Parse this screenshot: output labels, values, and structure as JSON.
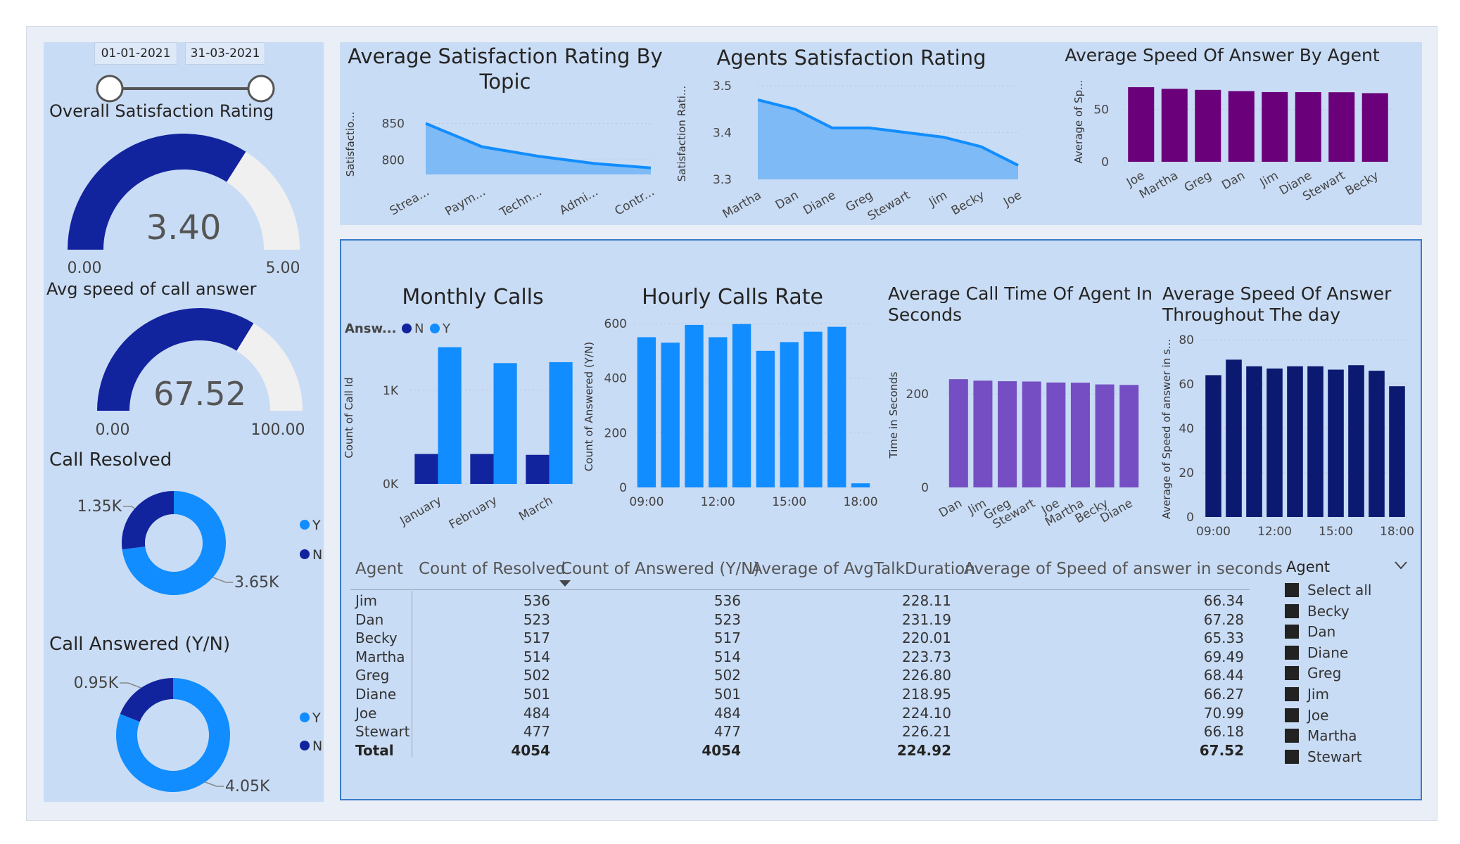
{
  "slicer": {
    "start_date": "01-01-2021",
    "end_date": "31-03-2021"
  },
  "gauges": [
    {
      "title": "Overall Satisfaction Rating",
      "value": 3.4,
      "value_label": "3.40",
      "min_label": "0.00",
      "max_label": "5.00",
      "min": 0,
      "max": 5,
      "fill_color": "#12239e",
      "track_color": "#f0f0f0"
    },
    {
      "title": "Avg speed of call answer",
      "value": 67.52,
      "value_label": "67.52",
      "min_label": "0.00",
      "max_label": "100.00",
      "min": 0,
      "max": 100,
      "fill_color": "#12239e",
      "track_color": "#f0f0f0"
    }
  ],
  "donuts": [
    {
      "title": "Call Resolved",
      "label_n": "1.35K",
      "label_y": "3.65K",
      "value_n": 1350,
      "value_y": 3650,
      "legend": [
        "Y",
        "N"
      ]
    },
    {
      "title": "Call Answered (Y/N)",
      "label_n": "0.95K",
      "label_y": "4.05K",
      "value_n": 950,
      "value_y": 4050,
      "legend": [
        "Y",
        "N"
      ]
    }
  ],
  "colors": {
    "dark_blue": "#12239e",
    "light_blue": "#118dff",
    "area_fill": "#7ebaf5",
    "area_line": "#118dff",
    "purple_dark": "#6b007b",
    "purple": "#744ec2",
    "navy": "#0b1a70"
  },
  "chart_data": [
    {
      "id": "sat_topic",
      "type": "area",
      "title_lines": [
        "Average Satisfaction Rating By",
        "Topic"
      ],
      "ylabel": "Satisfactio...",
      "categories": [
        "Strea...",
        "Paym...",
        "Techn...",
        "Admi...",
        "Contr..."
      ],
      "values": [
        850,
        818,
        805,
        795,
        789
      ],
      "ylim": [
        780,
        865
      ],
      "yticks": [
        800,
        850
      ]
    },
    {
      "id": "agent_sat",
      "type": "area",
      "title_lines": [
        "Agents Satisfaction Rating"
      ],
      "ylabel": "Satisfaction Rati...",
      "categories": [
        "Martha",
        "Dan",
        "Diane",
        "Greg",
        "Stewart",
        "Jim",
        "Becky",
        "Joe"
      ],
      "values": [
        3.47,
        3.45,
        3.41,
        3.41,
        3.4,
        3.39,
        3.37,
        3.33
      ],
      "ylim": [
        3.3,
        3.5
      ],
      "yticks": [
        3.3,
        3.4,
        3.5
      ]
    },
    {
      "id": "speed_agent",
      "type": "bar",
      "title_lines": [
        "Average Speed Of Answer By Agent"
      ],
      "ylabel": "Average of Sp...",
      "categories": [
        "Joe",
        "Martha",
        "Greg",
        "Dan",
        "Jim",
        "Diane",
        "Stewart",
        "Becky"
      ],
      "values": [
        70.99,
        69.49,
        68.44,
        67.28,
        66.34,
        66.27,
        66.18,
        65.33
      ],
      "ylim": [
        0,
        75
      ],
      "yticks": [
        0,
        50
      ]
    },
    {
      "id": "monthly",
      "type": "bar",
      "title_lines": [
        "Monthly Calls"
      ],
      "ylabel": "Count of Call Id",
      "legend_title": "Answ...",
      "categories": [
        "January",
        "February",
        "March"
      ],
      "series": [
        {
          "name": "N",
          "values": [
            320,
            320,
            310
          ]
        },
        {
          "name": "Y",
          "values": [
            1460,
            1290,
            1300
          ]
        }
      ],
      "ylim": [
        0,
        1600
      ],
      "yticks": [
        {
          "v": 0,
          "label": "0K"
        },
        {
          "v": 1000,
          "label": "1K"
        }
      ]
    },
    {
      "id": "hourly",
      "type": "bar",
      "title_lines": [
        "Hourly Calls Rate"
      ],
      "ylabel": "Count of Answered (Y/N)",
      "categories": [
        "09:00",
        "10:00",
        "11:00",
        "12:00",
        "13:00",
        "14:00",
        "15:00",
        "16:00",
        "17:00",
        "18:00"
      ],
      "xticks_shown": [
        "09:00",
        "12:00",
        "15:00",
        "18:00"
      ],
      "values": [
        550,
        530,
        595,
        550,
        598,
        500,
        532,
        570,
        588,
        15
      ],
      "ylim": [
        0,
        600
      ],
      "yticks": [
        0,
        200,
        400,
        600
      ]
    },
    {
      "id": "call_time",
      "type": "bar",
      "title_lines": [
        "Average Call Time Of Agent In",
        "Seconds"
      ],
      "ylabel": "Time in Seconds",
      "categories": [
        "Dan",
        "Jim",
        "Greg",
        "Stewart",
        "Joe",
        "Martha",
        "Becky",
        "Diane"
      ],
      "values": [
        231.19,
        228.11,
        226.8,
        226.21,
        224.1,
        223.73,
        220.01,
        218.95
      ],
      "ylim": [
        0,
        290
      ],
      "yticks": [
        0,
        200
      ]
    },
    {
      "id": "speed_day",
      "type": "bar",
      "title_lines": [
        "Average Speed Of Answer",
        "Throughout The day"
      ],
      "ylabel": "Average of Speed of answer in s...",
      "categories": [
        "09:00",
        "10:00",
        "11:00",
        "12:00",
        "13:00",
        "14:00",
        "15:00",
        "16:00",
        "17:00",
        "18:00"
      ],
      "xticks_shown": [
        "09:00",
        "12:00",
        "15:00",
        "18:00"
      ],
      "values": [
        64,
        71,
        68,
        67,
        68,
        68,
        66.5,
        68.5,
        66,
        59
      ],
      "ylim": [
        0,
        80
      ],
      "yticks": [
        0,
        20,
        40,
        60,
        80
      ]
    }
  ],
  "table": {
    "headers": [
      "Agent",
      "Count of Resolved",
      "Count of Answered (Y/N)",
      "Average of AvgTalkDuration",
      "Average of Speed of answer in seconds"
    ],
    "rows": [
      [
        "Jim",
        "536",
        "536",
        "228.11",
        "66.34"
      ],
      [
        "Dan",
        "523",
        "523",
        "231.19",
        "67.28"
      ],
      [
        "Becky",
        "517",
        "517",
        "220.01",
        "65.33"
      ],
      [
        "Martha",
        "514",
        "514",
        "223.73",
        "69.49"
      ],
      [
        "Greg",
        "502",
        "502",
        "226.80",
        "68.44"
      ],
      [
        "Diane",
        "501",
        "501",
        "218.95",
        "66.27"
      ],
      [
        "Joe",
        "484",
        "484",
        "224.10",
        "70.99"
      ],
      [
        "Stewart",
        "477",
        "477",
        "226.21",
        "66.18"
      ]
    ],
    "total": [
      "Total",
      "4054",
      "4054",
      "224.92",
      "67.52"
    ]
  },
  "agent_filter": {
    "title": "Agent",
    "items": [
      "Select all",
      "Becky",
      "Dan",
      "Diane",
      "Greg",
      "Jim",
      "Joe",
      "Martha",
      "Stewart"
    ]
  }
}
